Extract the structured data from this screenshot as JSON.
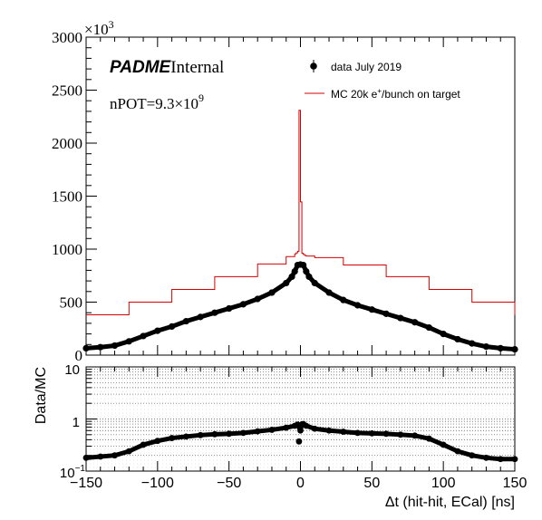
{
  "chart_data": [
    {
      "type": "line",
      "panel": "main",
      "y_exponent_label": "×10",
      "y_exponent_power": "3",
      "ylim": [
        0,
        3000
      ],
      "xlim": [
        -150,
        150
      ],
      "yticks": [
        "0",
        "500",
        "1000",
        "1500",
        "2000",
        "2500",
        "3000"
      ],
      "annotations": {
        "padme": "PADME",
        "internal": "Internal",
        "npot_prefix": "nPOT=9.3×10",
        "npot_power": "9"
      },
      "legend": {
        "data_label": "data July 2019",
        "mc_prefix": "MC 20k e",
        "mc_sup": "+",
        "mc_suffix": "/bunch on target"
      },
      "series": [
        {
          "name": "MC 20k e+/bunch on target",
          "style": "step",
          "color": "#d40000",
          "x": [
            -150,
            -120,
            -90,
            -60,
            -30,
            -10,
            -4,
            -3,
            -2,
            -1,
            0,
            1,
            2,
            3,
            4,
            10,
            30,
            60,
            90,
            120,
            150
          ],
          "y": [
            380,
            500,
            620,
            740,
            860,
            930,
            955,
            965,
            980,
            2310,
            1445,
            960,
            950,
            940,
            935,
            920,
            850,
            740,
            620,
            500,
            380
          ]
        },
        {
          "name": "data July 2019",
          "style": "points",
          "color": "#000000",
          "x": [
            -150,
            -140,
            -130,
            -120,
            -110,
            -100,
            -90,
            -80,
            -70,
            -60,
            -50,
            -40,
            -30,
            -20,
            -10,
            -6,
            -4,
            -2,
            0,
            2,
            4,
            6,
            10,
            20,
            30,
            40,
            50,
            60,
            70,
            80,
            90,
            100,
            110,
            120,
            130,
            140,
            150
          ],
          "y": [
            65,
            75,
            90,
            130,
            180,
            230,
            270,
            320,
            360,
            400,
            440,
            480,
            530,
            590,
            680,
            740,
            790,
            850,
            855,
            850,
            790,
            740,
            680,
            590,
            520,
            470,
            430,
            390,
            350,
            310,
            260,
            200,
            150,
            110,
            80,
            65,
            55
          ]
        }
      ]
    },
    {
      "type": "scatter",
      "panel": "ratio",
      "ylabel": "Data/MC",
      "xlabel": "Δt (hit-hit, ECal) [ns]",
      "yscale": "log",
      "ylim": [
        0.1,
        10
      ],
      "xlim": [
        -150,
        150
      ],
      "xticks": [
        "−150",
        "−100",
        "−50",
        "0",
        "50",
        "100",
        "150"
      ],
      "yticks": [
        "10",
        "1"
      ],
      "ytick_min_base": "10",
      "ytick_min_power": "−1",
      "series": [
        {
          "name": "Data/MC",
          "color": "#000000",
          "x": [
            -150,
            -140,
            -130,
            -120,
            -110,
            -100,
            -90,
            -80,
            -70,
            -60,
            -50,
            -40,
            -30,
            -20,
            -10,
            -4,
            -2,
            -1,
            0,
            1,
            2,
            4,
            10,
            20,
            30,
            40,
            50,
            60,
            70,
            80,
            90,
            100,
            110,
            120,
            130,
            140,
            150
          ],
          "y": [
            0.18,
            0.19,
            0.2,
            0.24,
            0.32,
            0.38,
            0.43,
            0.46,
            0.49,
            0.51,
            0.52,
            0.54,
            0.58,
            0.62,
            0.68,
            0.74,
            0.78,
            0.37,
            0.6,
            0.79,
            0.8,
            0.74,
            0.65,
            0.6,
            0.57,
            0.54,
            0.53,
            0.52,
            0.5,
            0.48,
            0.42,
            0.32,
            0.24,
            0.2,
            0.18,
            0.17,
            0.17
          ]
        }
      ]
    }
  ]
}
